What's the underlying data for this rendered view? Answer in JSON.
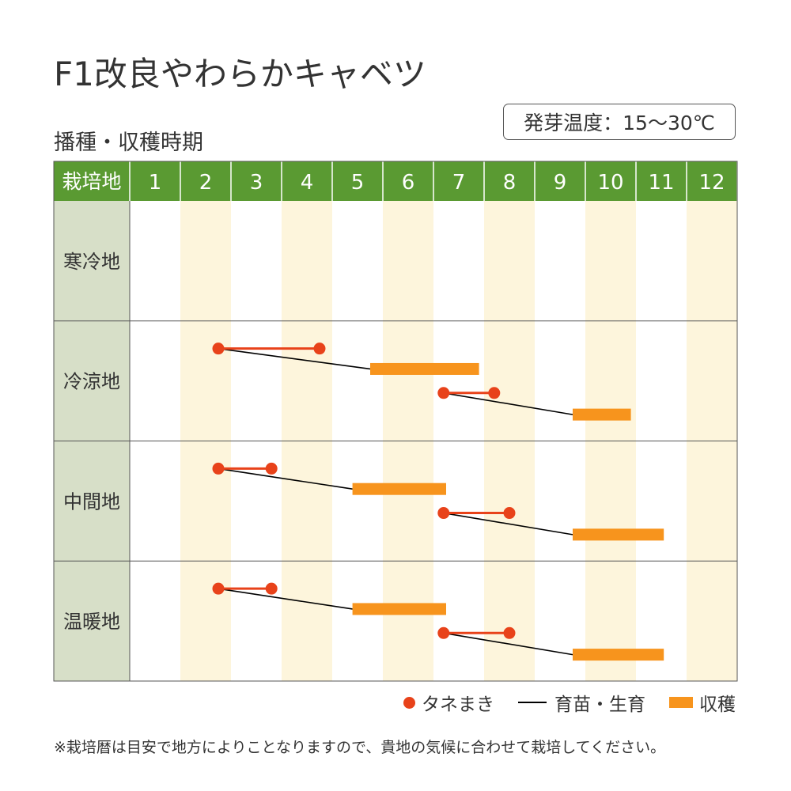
{
  "title": "F1改良やわらかキャベツ",
  "subtitle": "播種・収穫時期",
  "temp_badge": "発芽温度：15〜30℃",
  "footnote": "※栽培暦は目安で地方によりことなりますので、貴地の気候に合わせて栽培してください。",
  "legend": {
    "sowing": "タネまき",
    "growing": "育苗・生育",
    "harvest": "収穫"
  },
  "colors": {
    "header_green": "#5a9a32",
    "region_bg": "#d7dfc8",
    "stripe": "#fdf5dc",
    "sowing": "#e8421a",
    "harvest": "#f7941d",
    "growing": "#000000"
  },
  "chart_data": {
    "type": "table",
    "header_label": "栽培地",
    "months": [
      "1",
      "2",
      "3",
      "4",
      "5",
      "6",
      "7",
      "8",
      "9",
      "10",
      "11",
      "12"
    ],
    "regions": [
      {
        "name": "寒冷地",
        "schedules": []
      },
      {
        "name": "冷涼地",
        "schedules": [
          {
            "sow_start": 2.75,
            "sow_end": 4.75,
            "harvest_start": 5.75,
            "harvest_end": 7.9
          },
          {
            "sow_start": 7.2,
            "sow_end": 8.2,
            "harvest_start": 9.75,
            "harvest_end": 10.9
          }
        ]
      },
      {
        "name": "中間地",
        "schedules": [
          {
            "sow_start": 2.75,
            "sow_end": 3.8,
            "harvest_start": 5.4,
            "harvest_end": 7.25
          },
          {
            "sow_start": 7.2,
            "sow_end": 8.5,
            "harvest_start": 9.75,
            "harvest_end": 11.55
          }
        ]
      },
      {
        "name": "温暖地",
        "schedules": [
          {
            "sow_start": 2.75,
            "sow_end": 3.8,
            "harvest_start": 5.4,
            "harvest_end": 7.25
          },
          {
            "sow_start": 7.2,
            "sow_end": 8.5,
            "harvest_start": 9.75,
            "harvest_end": 11.55
          }
        ]
      }
    ]
  }
}
